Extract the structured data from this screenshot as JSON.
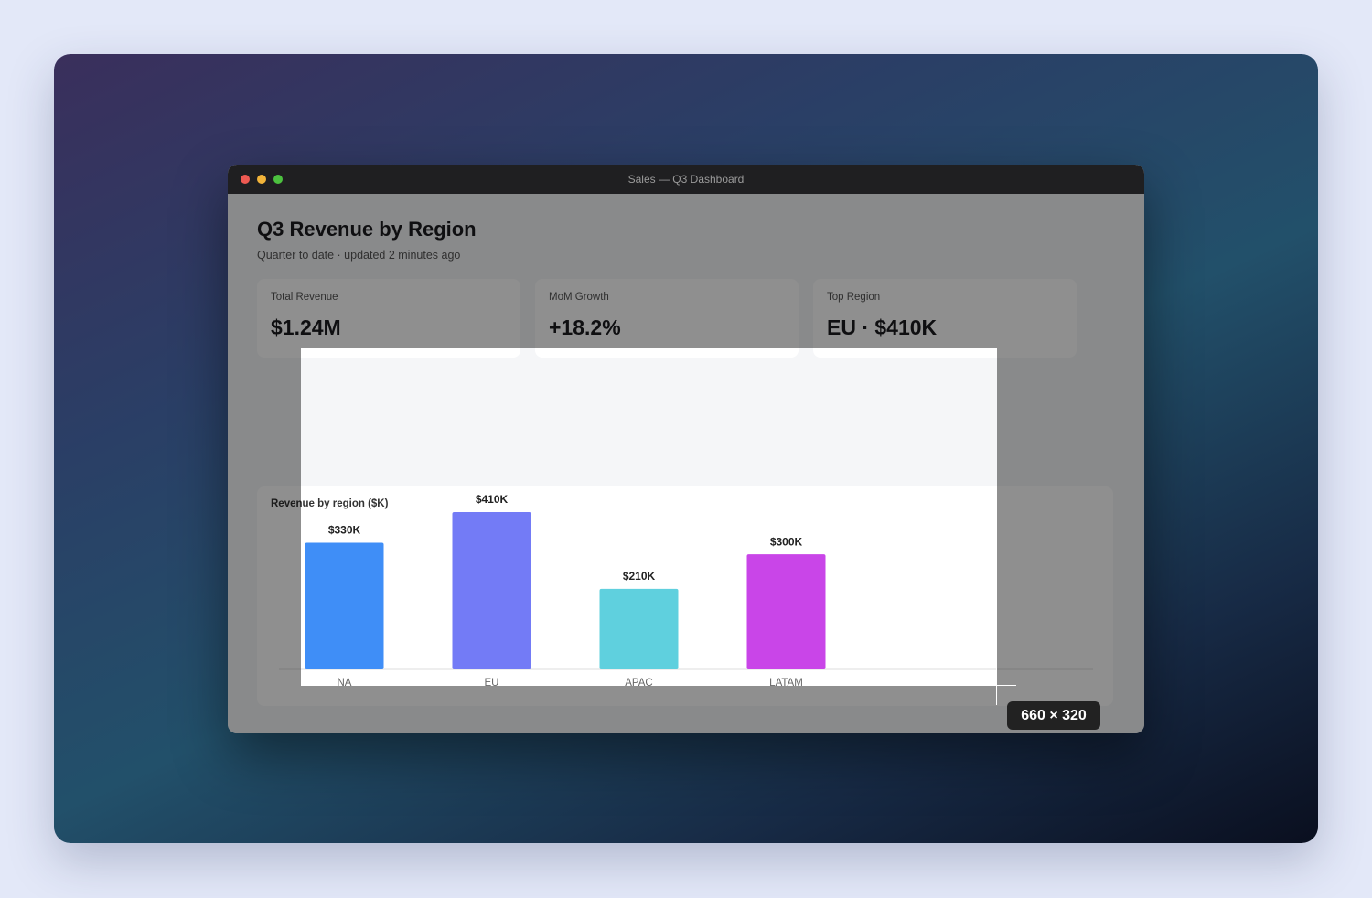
{
  "window": {
    "title": "Sales — Q3 Dashboard"
  },
  "header": {
    "title": "Q3 Revenue by Region",
    "subtitle": "Quarter to date · updated 2 minutes ago"
  },
  "kpis": [
    {
      "label": "Total Revenue",
      "value": "$1.24M"
    },
    {
      "label": "MoM Growth",
      "value": "+18.2%"
    },
    {
      "label": "Top Region",
      "value": "EU · $410K"
    }
  ],
  "chart_data": {
    "type": "bar",
    "title": "Revenue by region ($K)",
    "categories": [
      "NA",
      "EU",
      "APAC",
      "LATAM"
    ],
    "values": [
      330,
      410,
      210,
      300
    ],
    "value_labels": [
      "$330K",
      "$410K",
      "$210K",
      "$300K"
    ],
    "colors": [
      "#3f8ef7",
      "#737bf6",
      "#5fd0de",
      "#c945e8"
    ]
  },
  "selection": {
    "size_label": "660 × 320"
  }
}
